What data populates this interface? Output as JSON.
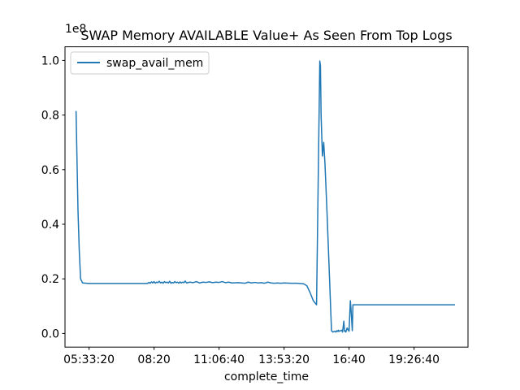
{
  "chart_data": {
    "type": "line",
    "title": "SWAP Memory AVAILABLE Value+ As Seen From Top Logs",
    "xlabel": "complete_time",
    "ylabel": "",
    "y_multiplier_label": "1e8",
    "x_ticks": [
      {
        "value": 20000,
        "label": "05:33:20"
      },
      {
        "value": 30000,
        "label": "08:20"
      },
      {
        "value": 40000,
        "label": "11:06:40"
      },
      {
        "value": 50000,
        "label": "13:53:20"
      },
      {
        "value": 60000,
        "label": "16:40"
      },
      {
        "value": 70000,
        "label": "19:26:40"
      }
    ],
    "y_ticks": [
      0.0,
      0.2,
      0.4,
      0.6,
      0.8,
      1.0
    ],
    "xlim": [
      16300,
      78300
    ],
    "ylim": [
      -0.05,
      1.05
    ],
    "legend": {
      "position": "top-left"
    },
    "grid": false,
    "series": [
      {
        "name": "swap_avail_mem",
        "color": "#1f77b4",
        "x": [
          18000,
          18300,
          18500,
          18700,
          19000,
          20000,
          24000,
          29000,
          29200,
          29400,
          29600,
          29800,
          30000,
          30200,
          30400,
          30600,
          30800,
          31000,
          31200,
          31400,
          31600,
          31800,
          32000,
          32200,
          32400,
          32600,
          32800,
          33000,
          33200,
          33400,
          33600,
          33800,
          34000,
          34200,
          34400,
          34600,
          34800,
          35000,
          35500,
          36000,
          36500,
          37000,
          37500,
          38000,
          38500,
          39000,
          39500,
          40000,
          40500,
          41000,
          41500,
          42000,
          43000,
          44000,
          44500,
          45000,
          45500,
          46000,
          46500,
          47000,
          47500,
          48000,
          48500,
          49000,
          49500,
          50000,
          51000,
          52000,
          53000,
          53500,
          54000,
          54500,
          55000,
          55500,
          55600,
          55700,
          55900,
          56100,
          56300,
          56600,
          57000,
          57300,
          57500,
          57800,
          58000,
          58100,
          58300,
          58350,
          58500,
          58700,
          58900,
          59000,
          59200,
          59300,
          59400,
          59500,
          59600,
          59700,
          60000,
          60200,
          60300,
          60400,
          60500,
          60600,
          60700,
          61000,
          70000,
          76200,
          76300
        ],
        "y": [
          0.815,
          0.45,
          0.3,
          0.2,
          0.185,
          0.183,
          0.183,
          0.183,
          0.187,
          0.184,
          0.189,
          0.185,
          0.19,
          0.184,
          0.188,
          0.186,
          0.191,
          0.185,
          0.188,
          0.184,
          0.19,
          0.186,
          0.188,
          0.185,
          0.191,
          0.184,
          0.187,
          0.185,
          0.19,
          0.186,
          0.188,
          0.184,
          0.189,
          0.185,
          0.188,
          0.186,
          0.192,
          0.185,
          0.188,
          0.186,
          0.19,
          0.185,
          0.188,
          0.187,
          0.189,
          0.186,
          0.188,
          0.187,
          0.19,
          0.186,
          0.188,
          0.185,
          0.186,
          0.184,
          0.188,
          0.185,
          0.187,
          0.185,
          0.186,
          0.184,
          0.188,
          0.185,
          0.184,
          0.185,
          0.184,
          0.185,
          0.184,
          0.184,
          0.182,
          0.175,
          0.15,
          0.12,
          0.105,
          0.998,
          0.98,
          0.8,
          0.65,
          0.7,
          0.62,
          0.45,
          0.2,
          0.01,
          0.005,
          0.008,
          0.005,
          0.01,
          0.007,
          0.012,
          0.008,
          0.01,
          0.012,
          0.005,
          0.045,
          0.008,
          0.01,
          0.005,
          0.012,
          0.02,
          0.008,
          0.12,
          0.09,
          0.05,
          0.01,
          0.105,
          0.105,
          0.105,
          0.105,
          0.105,
          0.105
        ]
      }
    ]
  }
}
